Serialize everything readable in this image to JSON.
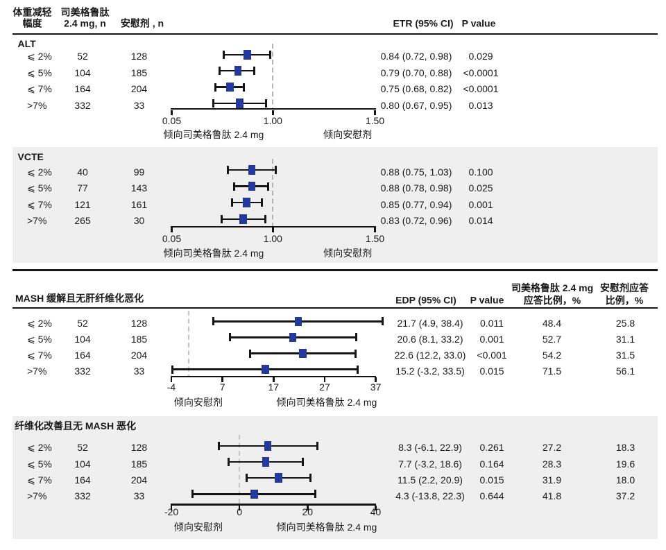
{
  "top_table": {
    "columns": {
      "subgroup": [
        "体重减轻",
        "幅度"
      ],
      "semaglutide_n": [
        "司美格鲁肽",
        "2.4 mg, n"
      ],
      "placebo_n": "安慰剂 , n",
      "effect": "ETR (95% CI)",
      "p": "P value"
    }
  },
  "bottom_table": {
    "section_title": "MASH 缓解且无肝纤维化恶化",
    "columns": {
      "effect": "EDP (95% CI)",
      "p": "P value",
      "responder_semaglutide": [
        "司美格鲁肽 2.4 mg",
        "应答比例，%"
      ],
      "responder_placebo": [
        "安慰剂应答",
        "比例，%"
      ]
    }
  },
  "colors": {
    "marker_blue": "#24399a",
    "dashed_ref_line": "#b9b9b9",
    "rule_black": "#161616",
    "section_background": "#efefef",
    "text": "#1a1a1a"
  },
  "chart_data": [
    {
      "type": "forest",
      "panel": "ALT",
      "scale": "log10",
      "effect_measure": "ETR (95% CI)",
      "axis": {
        "tick_labels": [
          "0.05",
          "1.00",
          "1.50"
        ],
        "ref_value": 1.0,
        "caption_left": "倾向司美格鲁肽 2.4 mg",
        "caption_right": "倾向安慰剂"
      },
      "rows": [
        {
          "subgroup": "⩽ 2%",
          "n_semaglutide": "52",
          "n_placebo": "128",
          "est": 0.84,
          "lo": 0.72,
          "hi": 0.98,
          "effect_label": "0.84 (0.72, 0.98)",
          "p": "0.029"
        },
        {
          "subgroup": "⩽ 5%",
          "n_semaglutide": "104",
          "n_placebo": "185",
          "est": 0.79,
          "lo": 0.7,
          "hi": 0.88,
          "effect_label": "0.79 (0.70, 0.88)",
          "p": "<0.0001"
        },
        {
          "subgroup": "⩽ 7%",
          "n_semaglutide": "164",
          "n_placebo": "204",
          "est": 0.75,
          "lo": 0.68,
          "hi": 0.82,
          "effect_label": "0.75 (0.68, 0.82)",
          "p": "<0.0001"
        },
        {
          "subgroup": ">7%",
          "n_semaglutide": "332",
          "n_placebo": "33",
          "est": 0.8,
          "lo": 0.67,
          "hi": 0.95,
          "effect_label": "0.80 (0.67, 0.95)",
          "p": "0.013"
        }
      ]
    },
    {
      "type": "forest",
      "panel": "VCTE",
      "scale": "log10",
      "effect_measure": "ETR (95% CI)",
      "axis": {
        "tick_labels": [
          "0.05",
          "1.00",
          "1.50"
        ],
        "ref_value": 1.0,
        "caption_left": "倾向司美格鲁肽 2.4 mg",
        "caption_right": "倾向安慰剂"
      },
      "rows": [
        {
          "subgroup": "⩽ 2%",
          "n_semaglutide": "40",
          "n_placebo": "99",
          "est": 0.88,
          "lo": 0.75,
          "hi": 1.03,
          "effect_label": "0.88 (0.75, 1.03)",
          "p": "0.100"
        },
        {
          "subgroup": "⩽ 5%",
          "n_semaglutide": "77",
          "n_placebo": "143",
          "est": 0.88,
          "lo": 0.78,
          "hi": 0.98,
          "effect_label": "0.88 (0.78, 0.98)",
          "p": "0.025"
        },
        {
          "subgroup": "⩽ 7%",
          "n_semaglutide": "121",
          "n_placebo": "161",
          "est": 0.85,
          "lo": 0.77,
          "hi": 0.94,
          "effect_label": "0.85 (0.77, 0.94)",
          "p": "0.001"
        },
        {
          "subgroup": ">7%",
          "n_semaglutide": "265",
          "n_placebo": "30",
          "est": 0.83,
          "lo": 0.72,
          "hi": 0.96,
          "effect_label": "0.83 (0.72, 0.96)",
          "p": "0.014"
        }
      ]
    },
    {
      "type": "forest",
      "panel": "MASH 缓解且无肝纤维化恶化",
      "scale": "linear",
      "effect_measure": "EDP (95% CI)",
      "axis": {
        "tick_labels": [
          "-4",
          "7",
          "17",
          "27",
          "37"
        ],
        "ref_value": 0,
        "caption_left": "倾向安慰剂",
        "caption_right": "倾向司美格鲁肽 2.4 mg"
      },
      "rows": [
        {
          "subgroup": "⩽ 2%",
          "n_semaglutide": "52",
          "n_placebo": "128",
          "est": 21.7,
          "lo": 4.9,
          "hi": 38.4,
          "effect_label": "21.7 (4.9, 38.4)",
          "p": "0.011",
          "resp_semaglutide": "48.4",
          "resp_placebo": "25.8"
        },
        {
          "subgroup": "⩽ 5%",
          "n_semaglutide": "104",
          "n_placebo": "185",
          "est": 20.6,
          "lo": 8.1,
          "hi": 33.2,
          "effect_label": "20.6 (8.1, 33.2)",
          "p": "0.001",
          "resp_semaglutide": "52.7",
          "resp_placebo": "31.1"
        },
        {
          "subgroup": "⩽ 7%",
          "n_semaglutide": "164",
          "n_placebo": "204",
          "est": 22.6,
          "lo": 12.2,
          "hi": 33.0,
          "effect_label": "22.6 (12.2, 33.0)",
          "p": "<0.001",
          "resp_semaglutide": "54.2",
          "resp_placebo": "31.5"
        },
        {
          "subgroup": ">7%",
          "n_semaglutide": "332",
          "n_placebo": "33",
          "est": 15.2,
          "lo": -3.2,
          "hi": 33.5,
          "effect_label": "15.2 (-3.2, 33.5)",
          "p": "0.015",
          "resp_semaglutide": "71.5",
          "resp_placebo": "56.1"
        }
      ]
    },
    {
      "type": "forest",
      "panel": "纤维化改善且无 MASH 恶化",
      "scale": "linear",
      "effect_measure": "EDP (95% CI)",
      "axis": {
        "tick_labels": [
          "-20",
          "0",
          "20",
          "40"
        ],
        "ref_value": 0,
        "caption_left": "倾向安慰剂",
        "caption_right": "倾向司美格鲁肽 2.4 mg"
      },
      "rows": [
        {
          "subgroup": "⩽ 2%",
          "n_semaglutide": "52",
          "n_placebo": "128",
          "est": 8.3,
          "lo": -6.1,
          "hi": 22.9,
          "effect_label": "8.3 (-6.1, 22.9)",
          "p": "0.261",
          "resp_semaglutide": "27.2",
          "resp_placebo": "18.3"
        },
        {
          "subgroup": "⩽ 5%",
          "n_semaglutide": "104",
          "n_placebo": "185",
          "est": 7.7,
          "lo": -3.2,
          "hi": 18.6,
          "effect_label": "7.7 (-3.2, 18.6)",
          "p": "0.164",
          "resp_semaglutide": "28.3",
          "resp_placebo": "19.6"
        },
        {
          "subgroup": "⩽ 7%",
          "n_semaglutide": "164",
          "n_placebo": "204",
          "est": 11.5,
          "lo": 2.2,
          "hi": 20.9,
          "effect_label": "11.5 (2.2, 20.9)",
          "p": "0.015",
          "resp_semaglutide": "31.9",
          "resp_placebo": "18.0"
        },
        {
          "subgroup": ">7%",
          "n_semaglutide": "332",
          "n_placebo": "33",
          "est": 4.3,
          "lo": -13.8,
          "hi": 22.3,
          "effect_label": "4.3 (-13.8, 22.3)",
          "p": "0.644",
          "resp_semaglutide": "41.8",
          "resp_placebo": "37.2"
        }
      ]
    }
  ]
}
